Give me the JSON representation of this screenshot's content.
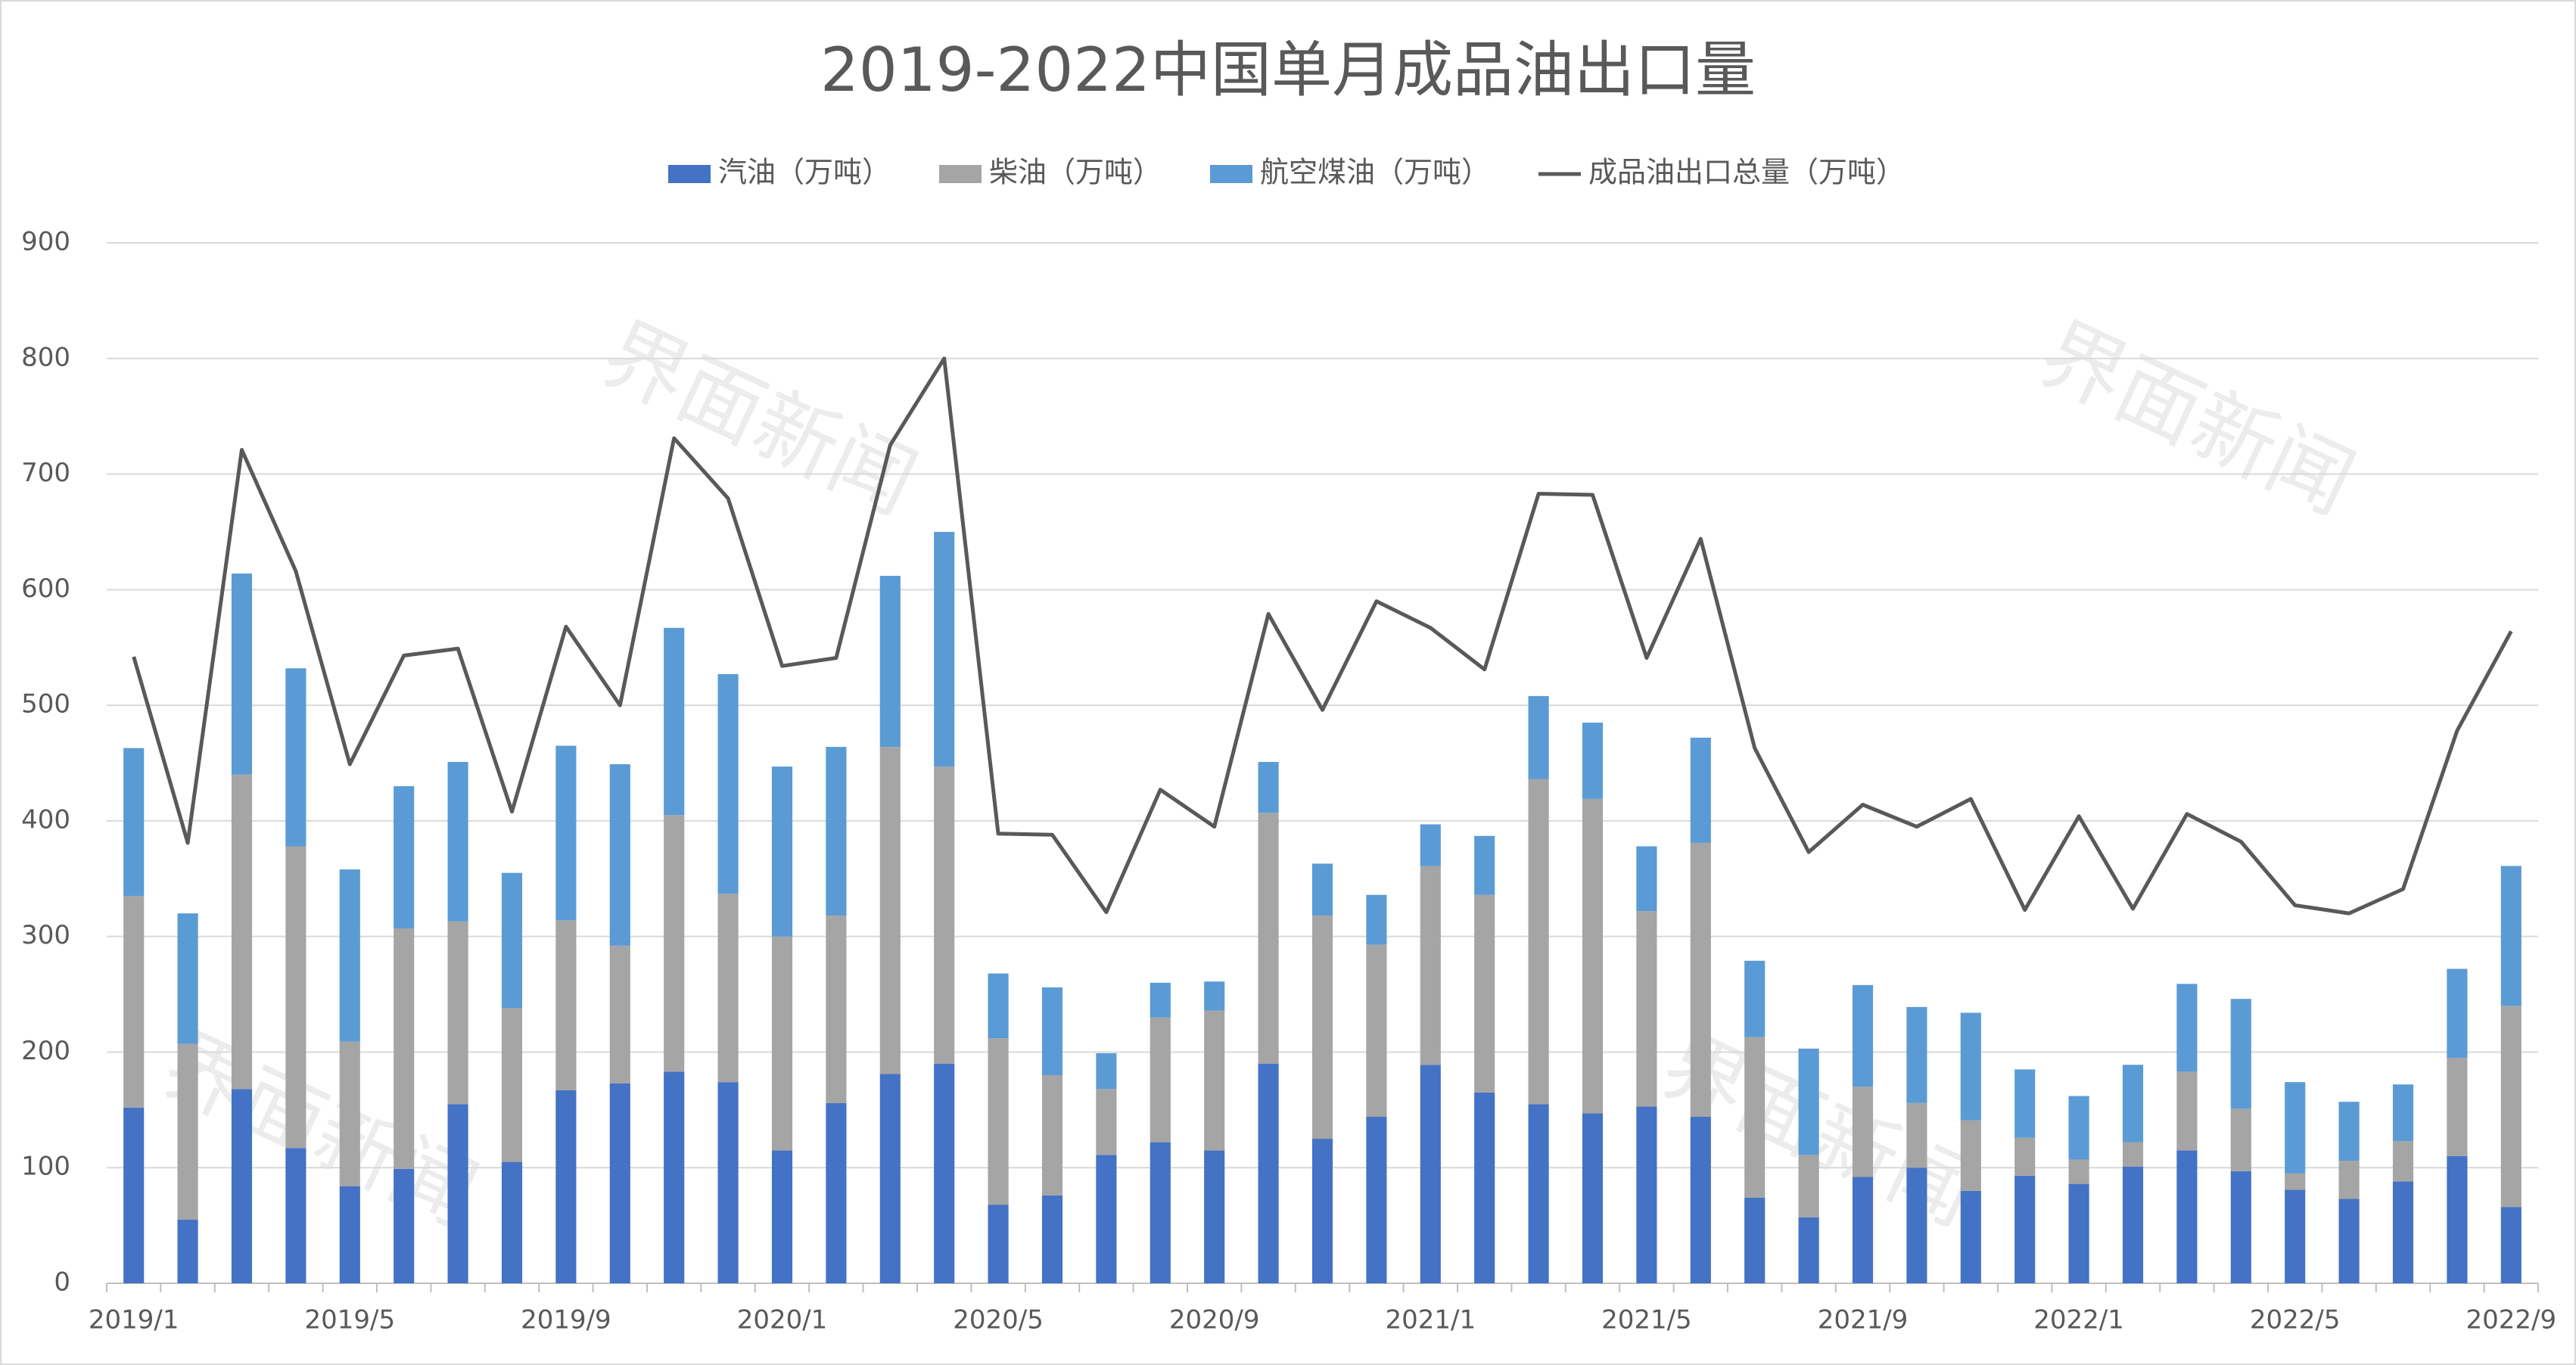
{
  "chart_data": {
    "type": "bar",
    "stacked": true,
    "title": "2019-2022中国单月成品油出口量",
    "watermark": "界面新闻",
    "categories": [
      "2019/1",
      null,
      null,
      null,
      "2019/5",
      null,
      null,
      null,
      "2019/9",
      null,
      null,
      null,
      "2020/1",
      null,
      null,
      null,
      "2020/5",
      null,
      null,
      null,
      "2020/9",
      null,
      null,
      null,
      "2021/1",
      null,
      null,
      null,
      "2021/5",
      null,
      null,
      null,
      "2021/9",
      null,
      null,
      null,
      "2022/1",
      null,
      null,
      null,
      "2022/5",
      null,
      null,
      null,
      "2022/9"
    ],
    "series": [
      {
        "name": "汽油（万吨）",
        "color": "#4472c4",
        "values": [
          152,
          55,
          168,
          117,
          84,
          99,
          155,
          105,
          167,
          173,
          183,
          174,
          115,
          156,
          181,
          190,
          68,
          76,
          111,
          122,
          115,
          190,
          125,
          144,
          189,
          165,
          155,
          147,
          153,
          144,
          74,
          57,
          92,
          100,
          80,
          93,
          86,
          101,
          115,
          97,
          81,
          73,
          88,
          110,
          66
        ]
      },
      {
        "name": "柴油（万吨）",
        "color": "#a5a5a5",
        "values": [
          183,
          152,
          272,
          261,
          125,
          208,
          158,
          133,
          147,
          119,
          222,
          163,
          185,
          162,
          283,
          257,
          144,
          104,
          57,
          108,
          121,
          217,
          193,
          149,
          172,
          171,
          281,
          272,
          169,
          237,
          139,
          54,
          78,
          56,
          61,
          33,
          21,
          21,
          68,
          54,
          14,
          33,
          35,
          85,
          174
        ]
      },
      {
        "name": "航空煤油（万吨）",
        "color": "#5b9bd5",
        "values": [
          128,
          113,
          174,
          154,
          149,
          123,
          138,
          117,
          151,
          157,
          162,
          190,
          147,
          146,
          148,
          203,
          56,
          76,
          31,
          30,
          25,
          44,
          45,
          43,
          36,
          51,
          72,
          66,
          56,
          91,
          66,
          92,
          88,
          83,
          93,
          59,
          55,
          67,
          76,
          95,
          79,
          51,
          49,
          77,
          121
        ]
      },
      {
        "name": "成品油出口总量（万吨）",
        "color": "#595959",
        "type": "line",
        "values": [
          542,
          381,
          721,
          616,
          449,
          543,
          549,
          408,
          568,
          500,
          731,
          679,
          534,
          541,
          725,
          800,
          389,
          388,
          321,
          427,
          395,
          579,
          496,
          590,
          567,
          531,
          683,
          682,
          541,
          644,
          463,
          373,
          414,
          395,
          419,
          323,
          404,
          324,
          406,
          382,
          327,
          320,
          341,
          478,
          564
        ]
      }
    ],
    "ylim": [
      0,
      900
    ],
    "yticks": [
      0,
      100,
      200,
      300,
      400,
      500,
      600,
      700,
      800,
      900
    ],
    "grid": true
  }
}
